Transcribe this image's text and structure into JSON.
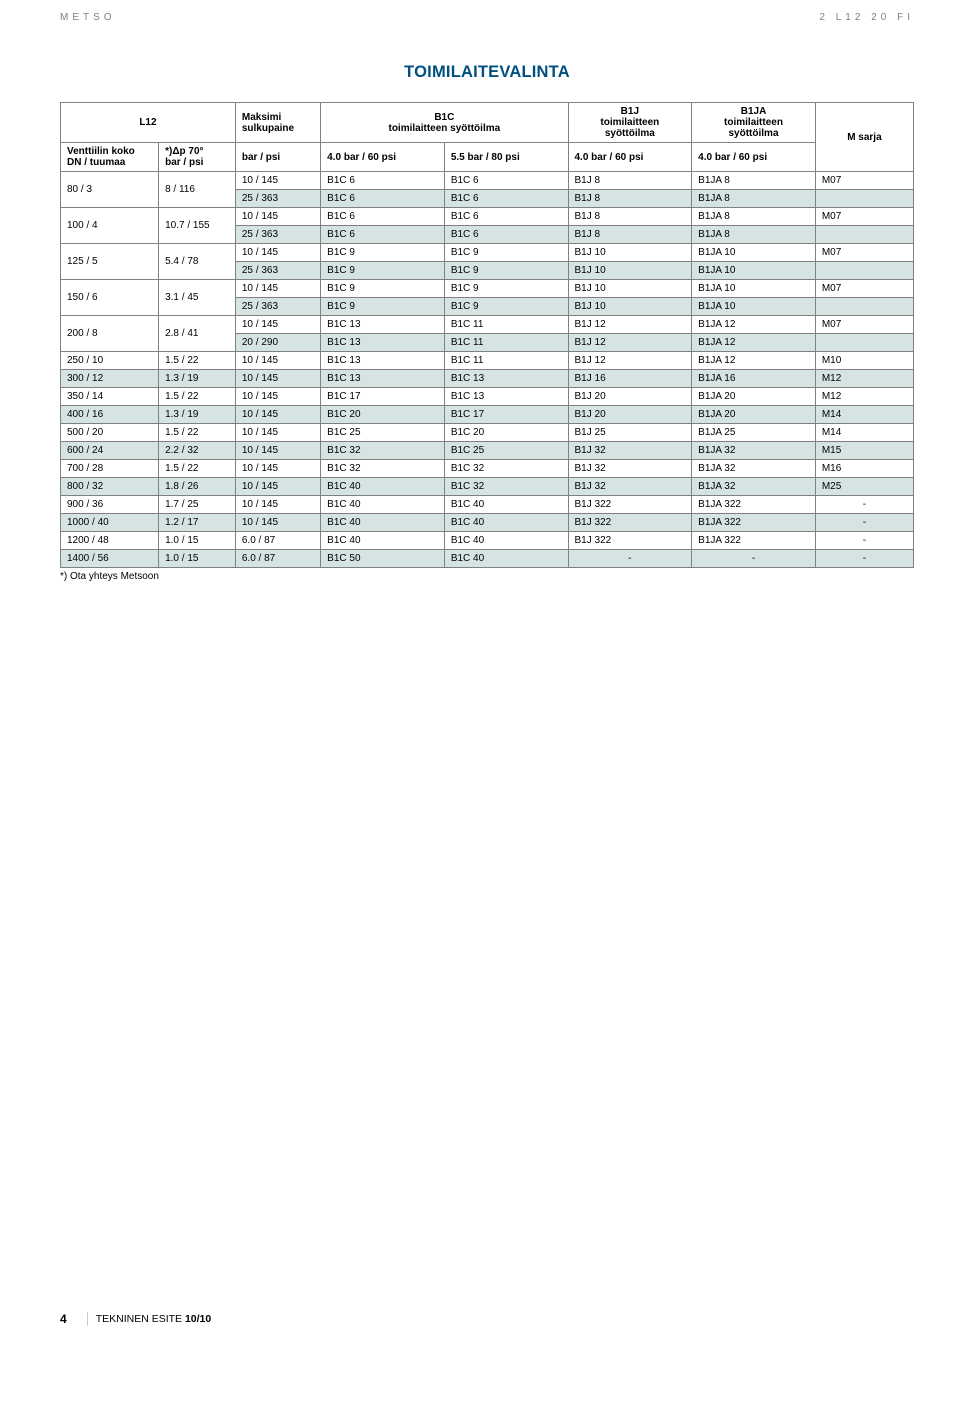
{
  "header": {
    "left": "METSO",
    "right": "2 L12 20 FI"
  },
  "title": "TOIMILAITEVALINTA",
  "colors": {
    "title": "#00507f",
    "shade": "#d5e3e3",
    "border": "#808080",
    "topbar_text": "#808080"
  },
  "table": {
    "head": {
      "l12": "L12",
      "col1_a": "Venttiilin koko",
      "col1_b": "DN / tuumaa",
      "col2_a": "*)Δp 70°",
      "col2_b": "bar / psi",
      "col3_a": "Maksimi",
      "col3_b": "sulkupaine",
      "col3_c": "bar / psi",
      "b1c": "B1C",
      "b1c_sub": "toimilaitteen syöttöilma",
      "b1c_c1": "4.0 bar / 60 psi",
      "b1c_c2": "5.5 bar / 80 psi",
      "b1j": "B1J",
      "b1j_sub": "toimilaitteen syöttöilma",
      "b1j_c": "4.0 bar / 60 psi",
      "b1ja": "B1JA",
      "b1ja_sub": "toimilaitteen syöttöilma",
      "b1ja_c": "4.0 bar / 60 psi",
      "msarja": "M sarja"
    },
    "rows": [
      {
        "dn": "80 / 3",
        "dp": "8 / 116",
        "mk": "10 / 145",
        "c1": "B1C 6",
        "c2": "B1C 6",
        "j": "B1J 8",
        "ja": "B1JA 8",
        "m": "M07",
        "shade": false,
        "rs": 2
      },
      {
        "mk": "25 / 363",
        "c1": "B1C 6",
        "c2": "B1C 6",
        "j": "B1J 8",
        "ja": "B1JA 8",
        "m": "",
        "shade": true
      },
      {
        "dn": "100 / 4",
        "dp": "10.7 / 155",
        "mk": "10 / 145",
        "c1": "B1C 6",
        "c2": "B1C 6",
        "j": "B1J 8",
        "ja": "B1JA 8",
        "m": "M07",
        "shade": false,
        "rs": 2
      },
      {
        "mk": "25 / 363",
        "c1": "B1C 6",
        "c2": "B1C 6",
        "j": "B1J 8",
        "ja": "B1JA 8",
        "m": "",
        "shade": true
      },
      {
        "dn": "125 / 5",
        "dp": "5.4 / 78",
        "mk": "10 / 145",
        "c1": "B1C 9",
        "c2": "B1C 9",
        "j": "B1J 10",
        "ja": "B1JA 10",
        "m": "M07",
        "shade": false,
        "rs": 2
      },
      {
        "mk": "25 / 363",
        "c1": "B1C 9",
        "c2": "B1C 9",
        "j": "B1J 10",
        "ja": "B1JA 10",
        "m": "",
        "shade": true
      },
      {
        "dn": "150 / 6",
        "dp": "3.1 / 45",
        "mk": "10 / 145",
        "c1": "B1C 9",
        "c2": "B1C 9",
        "j": "B1J 10",
        "ja": "B1JA 10",
        "m": "M07",
        "shade": false,
        "rs": 2
      },
      {
        "mk": "25 / 363",
        "c1": "B1C 9",
        "c2": "B1C 9",
        "j": "B1J 10",
        "ja": "B1JA 10",
        "m": "",
        "shade": true
      },
      {
        "dn": "200 / 8",
        "dp": "2.8 / 41",
        "mk": "10 / 145",
        "c1": "B1C 13",
        "c2": "B1C 11",
        "j": "B1J 12",
        "ja": "B1JA 12",
        "m": "M07",
        "shade": false,
        "rs": 2
      },
      {
        "mk": "20 / 290",
        "c1": "B1C 13",
        "c2": "B1C 11",
        "j": "B1J 12",
        "ja": "B1JA 12",
        "m": "",
        "shade": true
      },
      {
        "dn": "250 / 10",
        "dp": "1.5 / 22",
        "mk": "10 / 145",
        "c1": "B1C 13",
        "c2": "B1C 11",
        "j": "B1J 12",
        "ja": "B1JA 12",
        "m": "M10",
        "shade": false,
        "rs": 1
      },
      {
        "dn": "300 / 12",
        "dp": "1.3 / 19",
        "mk": "10 / 145",
        "c1": "B1C 13",
        "c2": "B1C 13",
        "j": "B1J 16",
        "ja": "B1JA 16",
        "m": "M12",
        "shade": true,
        "rs": 1
      },
      {
        "dn": "350 / 14",
        "dp": "1.5 / 22",
        "mk": "10 / 145",
        "c1": "B1C 17",
        "c2": "B1C 13",
        "j": "B1J 20",
        "ja": "B1JA 20",
        "m": "M12",
        "shade": false,
        "rs": 1
      },
      {
        "dn": "400 / 16",
        "dp": "1.3 / 19",
        "mk": "10 / 145",
        "c1": "B1C 20",
        "c2": "B1C 17",
        "j": "B1J 20",
        "ja": "B1JA 20",
        "m": "M14",
        "shade": true,
        "rs": 1
      },
      {
        "dn": "500 / 20",
        "dp": "1.5 / 22",
        "mk": "10 / 145",
        "c1": "B1C 25",
        "c2": "B1C 20",
        "j": "B1J 25",
        "ja": "B1JA 25",
        "m": "M14",
        "shade": false,
        "rs": 1
      },
      {
        "dn": "600 / 24",
        "dp": "2.2 / 32",
        "mk": "10 / 145",
        "c1": "B1C 32",
        "c2": "B1C 25",
        "j": "B1J 32",
        "ja": "B1JA 32",
        "m": "M15",
        "shade": true,
        "rs": 1
      },
      {
        "dn": "700 / 28",
        "dp": "1.5 / 22",
        "mk": "10 / 145",
        "c1": "B1C 32",
        "c2": "B1C 32",
        "j": "B1J 32",
        "ja": "B1JA 32",
        "m": "M16",
        "shade": false,
        "rs": 1
      },
      {
        "dn": "800 / 32",
        "dp": "1.8 / 26",
        "mk": "10 / 145",
        "c1": "B1C 40",
        "c2": "B1C 32",
        "j": "B1J 32",
        "ja": "B1JA 32",
        "m": "M25",
        "shade": true,
        "rs": 1
      },
      {
        "dn": "900 / 36",
        "dp": "1.7 / 25",
        "mk": "10 / 145",
        "c1": "B1C 40",
        "c2": "B1C 40",
        "j": "B1J 322",
        "ja": "B1JA 322",
        "m": "-",
        "shade": false,
        "rs": 1
      },
      {
        "dn": "1000 / 40",
        "dp": "1.2 / 17",
        "mk": "10 / 145",
        "c1": "B1C 40",
        "c2": "B1C 40",
        "j": "B1J 322",
        "ja": "B1JA 322",
        "m": "-",
        "shade": true,
        "rs": 1
      },
      {
        "dn": "1200 / 48",
        "dp": "1.0 / 15",
        "mk": "6.0 / 87",
        "c1": "B1C 40",
        "c2": "B1C 40",
        "j": "B1J 322",
        "ja": "B1JA 322",
        "m": "-",
        "shade": false,
        "rs": 1
      },
      {
        "dn": "1400 / 56",
        "dp": "1.0 / 15",
        "mk": "6.0 / 87",
        "c1": "B1C 50",
        "c2": "B1C 40",
        "j": "-",
        "ja": "-",
        "m": "-",
        "shade": true,
        "rs": 1
      }
    ]
  },
  "footnote": "*) Ota yhteys Metsoon",
  "footer": {
    "page": "4",
    "text": "TEKNINEN ESITE ",
    "bold": "10/10"
  }
}
